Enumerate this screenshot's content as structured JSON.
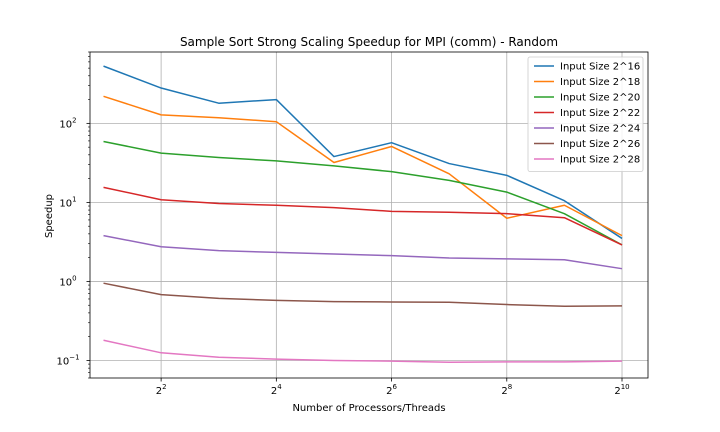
{
  "chart_data": {
    "type": "line",
    "title": "Sample Sort Strong Scaling Speedup for MPI (comm) - Random",
    "xlabel": "Number of Processors/Threads",
    "ylabel": "Speedup",
    "xscale": "log2",
    "yscale": "log10",
    "x": [
      2,
      4,
      8,
      16,
      32,
      64,
      128,
      256,
      512,
      1024
    ],
    "xlim": [
      1.7,
      1400
    ],
    "ylim": [
      0.06,
      800
    ],
    "x_ticks": [
      {
        "value": 4,
        "base": "2",
        "exp": "2"
      },
      {
        "value": 16,
        "base": "2",
        "exp": "4"
      },
      {
        "value": 64,
        "base": "2",
        "exp": "6"
      },
      {
        "value": 256,
        "base": "2",
        "exp": "8"
      },
      {
        "value": 1024,
        "base": "2",
        "exp": "10"
      }
    ],
    "y_ticks": [
      {
        "value": 0.1,
        "base": "10",
        "exp": "−1"
      },
      {
        "value": 1,
        "base": "10",
        "exp": "0"
      },
      {
        "value": 10,
        "base": "10",
        "exp": "1"
      },
      {
        "value": 100,
        "base": "10",
        "exp": "2"
      }
    ],
    "grid": true,
    "legend_position": "top-right",
    "series": [
      {
        "name": "Input Size 2^16",
        "color": "#1f77b4",
        "values": [
          530,
          280,
          180,
          200,
          38,
          57,
          31,
          22,
          10.5,
          3.5
        ]
      },
      {
        "name": "Input Size 2^18",
        "color": "#ff7f0e",
        "values": [
          220,
          128,
          118,
          105,
          32,
          51,
          23,
          6.3,
          9.2,
          3.8
        ]
      },
      {
        "name": "Input Size 2^20",
        "color": "#2ca02c",
        "values": [
          59,
          42,
          37,
          33.5,
          29,
          24.5,
          19,
          13.5,
          7.2,
          2.9
        ]
      },
      {
        "name": "Input Size 2^22",
        "color": "#d62728",
        "values": [
          15.5,
          10.8,
          9.7,
          9.2,
          8.6,
          7.7,
          7.5,
          7.2,
          6.4,
          2.9
        ]
      },
      {
        "name": "Input Size 2^24",
        "color": "#9467bd",
        "values": [
          3.8,
          2.75,
          2.45,
          2.33,
          2.22,
          2.12,
          1.98,
          1.93,
          1.88,
          1.45
        ]
      },
      {
        "name": "Input Size 2^26",
        "color": "#8c564b",
        "values": [
          0.95,
          0.68,
          0.61,
          0.575,
          0.555,
          0.55,
          0.545,
          0.51,
          0.485,
          0.49
        ]
      },
      {
        "name": "Input Size 2^28",
        "color": "#e377c2",
        "values": [
          0.18,
          0.125,
          0.11,
          0.104,
          0.1,
          0.098,
          0.095,
          0.096,
          0.096,
          0.098
        ]
      }
    ]
  }
}
